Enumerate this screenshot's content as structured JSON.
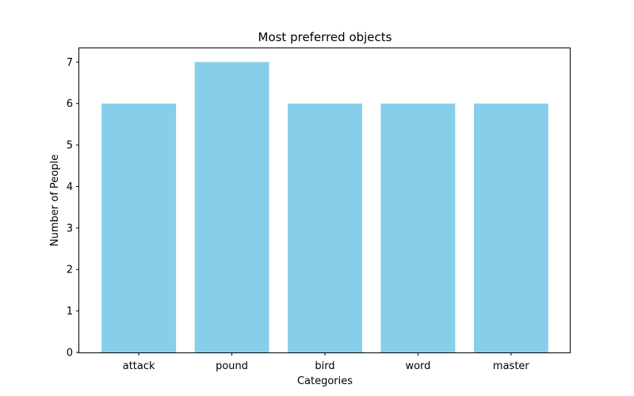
{
  "chart_data": {
    "type": "bar",
    "title": "Most preferred objects",
    "xlabel": "Categories",
    "ylabel": "Number of People",
    "categories": [
      "attack",
      "pound",
      "bird",
      "word",
      "master"
    ],
    "values": [
      6,
      7,
      6,
      6,
      6
    ],
    "ylim": [
      0,
      7.35
    ],
    "yticks": [
      0,
      1,
      2,
      3,
      4,
      5,
      6,
      7
    ],
    "bar_color": "#87CEEB",
    "grid": false,
    "legend": "none"
  }
}
